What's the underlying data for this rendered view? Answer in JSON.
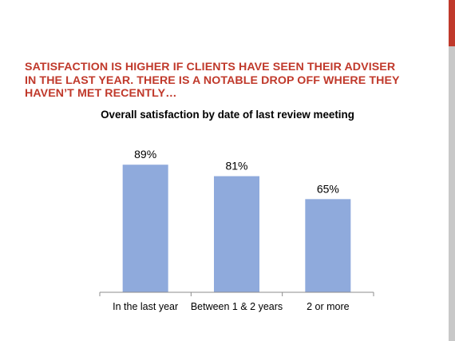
{
  "slide": {
    "headline_lines": [
      "SATISFACTION IS HIGHER IF CLIENTS HAVE SEEN THEIR ADVISER",
      "IN THE LAST YEAR.  THERE IS A NOTABLE DROP OFF WHERE THEY",
      "HAVEN’T MET RECENTLY…"
    ],
    "accent_color": "#c0392b"
  },
  "chart_data": {
    "type": "bar",
    "title": "Overall satisfaction  by date of last review meeting",
    "categories": [
      "In the last year",
      "Between 1 & 2 years",
      "2 or more"
    ],
    "values": [
      89,
      81,
      65
    ],
    "data_labels": [
      "89%",
      "81%",
      "65%"
    ],
    "bar_color": "#8faadc",
    "ylim": [
      0,
      100
    ],
    "grid": false,
    "legend": "none"
  }
}
